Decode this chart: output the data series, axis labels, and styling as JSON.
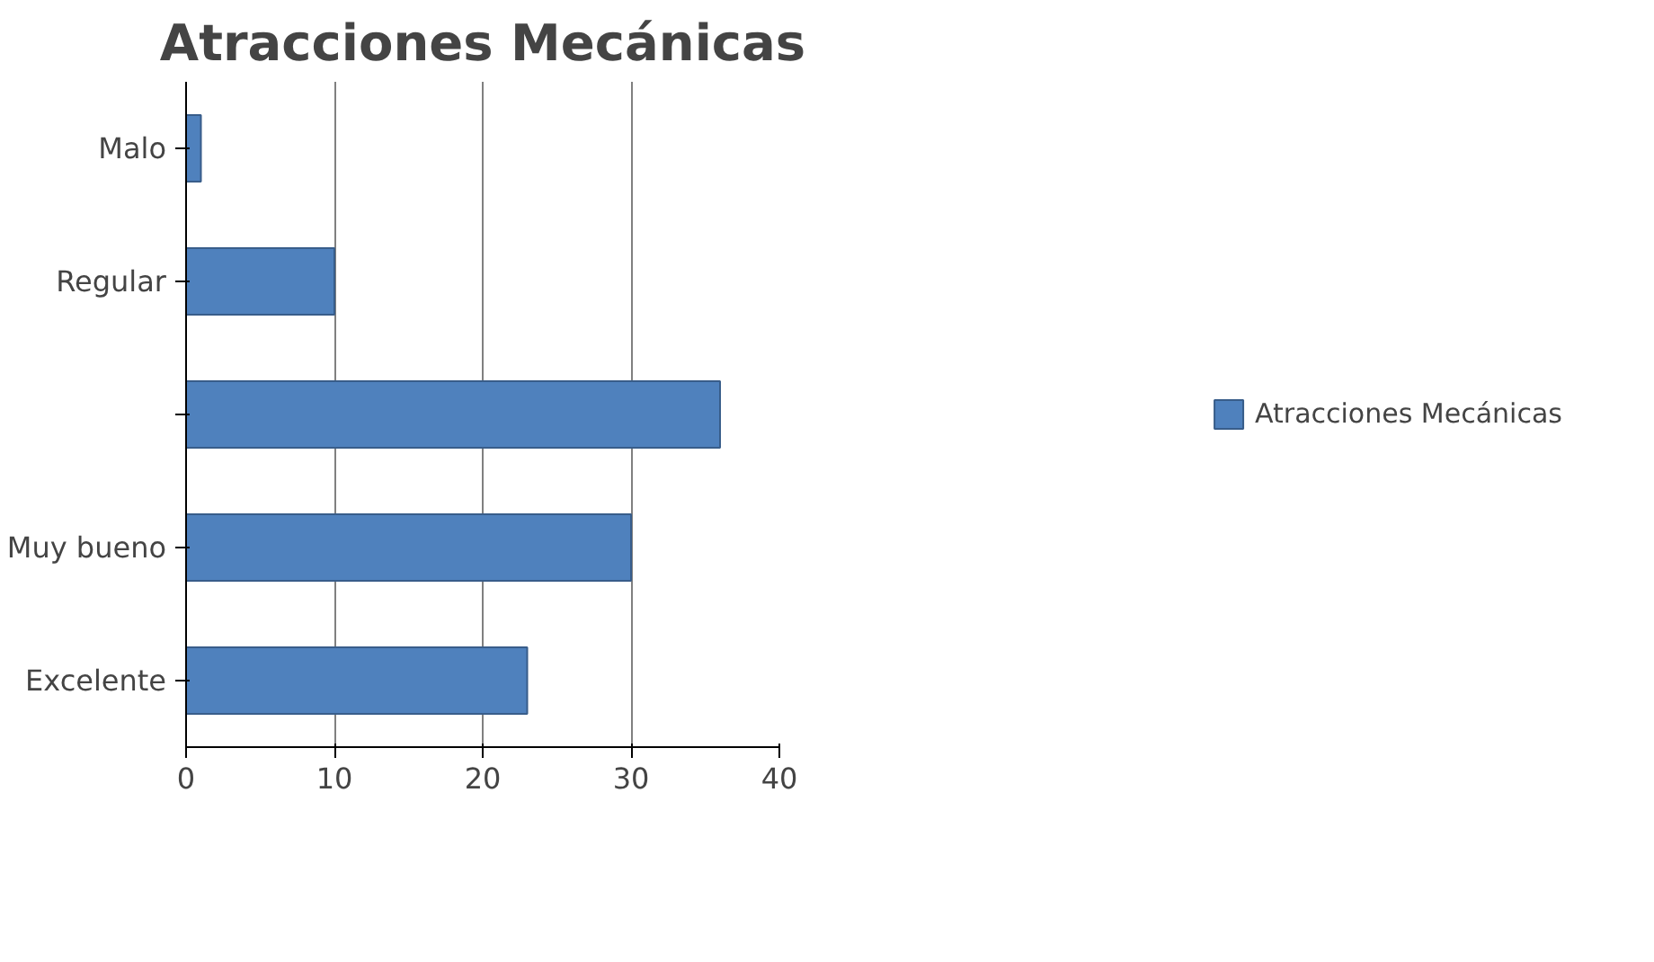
{
  "chart_data": {
    "type": "bar",
    "orientation": "horizontal",
    "title": "Atracciones Mecánicas",
    "categories": [
      "Malo",
      "Regular",
      null,
      "Muy bueno",
      "Excelente"
    ],
    "series": [
      {
        "name": "Atracciones Mecánicas",
        "color": "#4f81bd",
        "values": [
          1,
          10,
          36,
          30,
          23
        ]
      }
    ],
    "xlim": [
      0,
      40
    ],
    "xticks": [
      0,
      10,
      20,
      30,
      40
    ],
    "grid": "x",
    "legend": "right"
  }
}
